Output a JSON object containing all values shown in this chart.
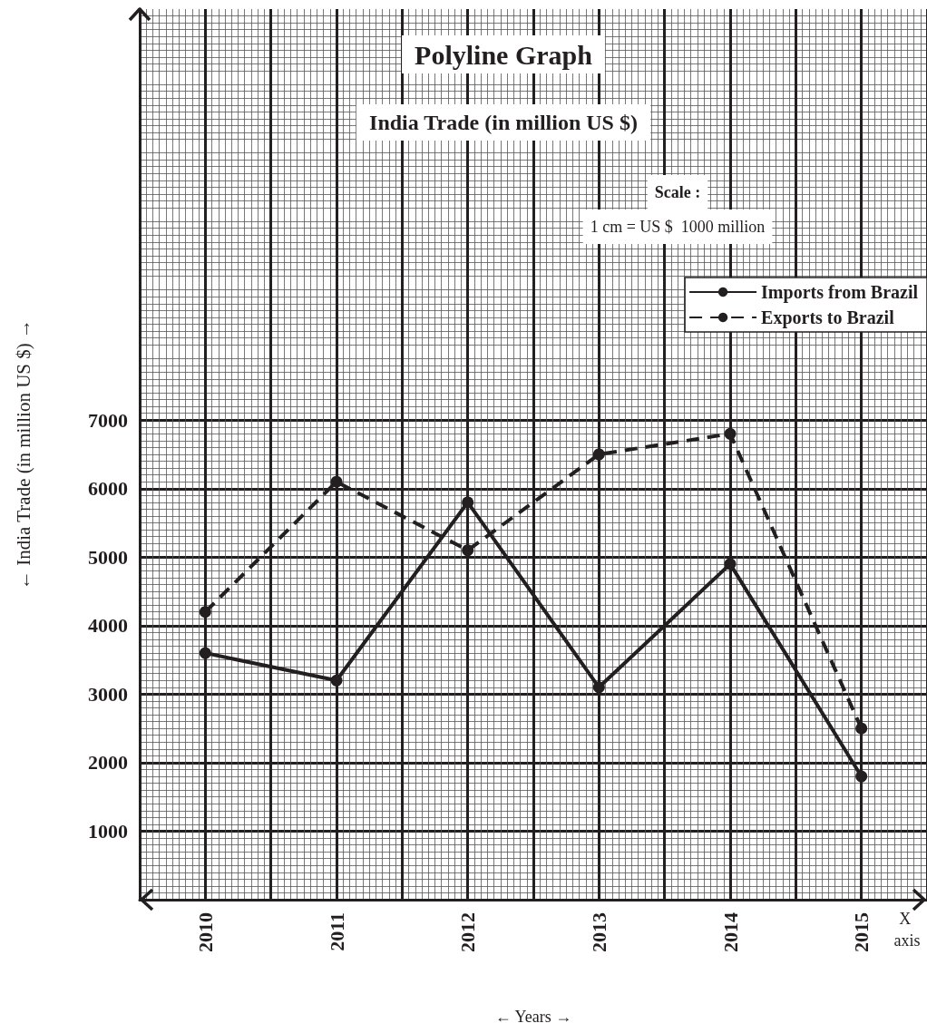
{
  "chart_data": {
    "type": "line",
    "title": "Polyline Graph",
    "subtitle": "India Trade (in million US $)",
    "xlabel": "← Years →",
    "ylabel": "← India Trade (in million US $) →",
    "annotations": [
      "Scale :",
      "1 cm = US $  1000 million",
      "X axis"
    ],
    "categories": [
      "2010",
      "2011",
      "2012",
      "2013",
      "2014",
      "2015"
    ],
    "series": [
      {
        "name": "Imports from Brazil",
        "color": "#231f20",
        "line_style": "solid",
        "values": [
          3600,
          3200,
          5800,
          3100,
          4900,
          1800
        ]
      },
      {
        "name": "Exports to Brazil",
        "color": "#231f20",
        "line_style": "dashed",
        "values": [
          4200,
          6100,
          5100,
          6500,
          6800,
          2500
        ]
      }
    ],
    "ylim": [
      0,
      13000
    ],
    "yticks": [
      1000,
      2000,
      3000,
      4000,
      5000,
      6000,
      7000
    ],
    "grid": true,
    "legend": "top right",
    "marker": "circle"
  }
}
